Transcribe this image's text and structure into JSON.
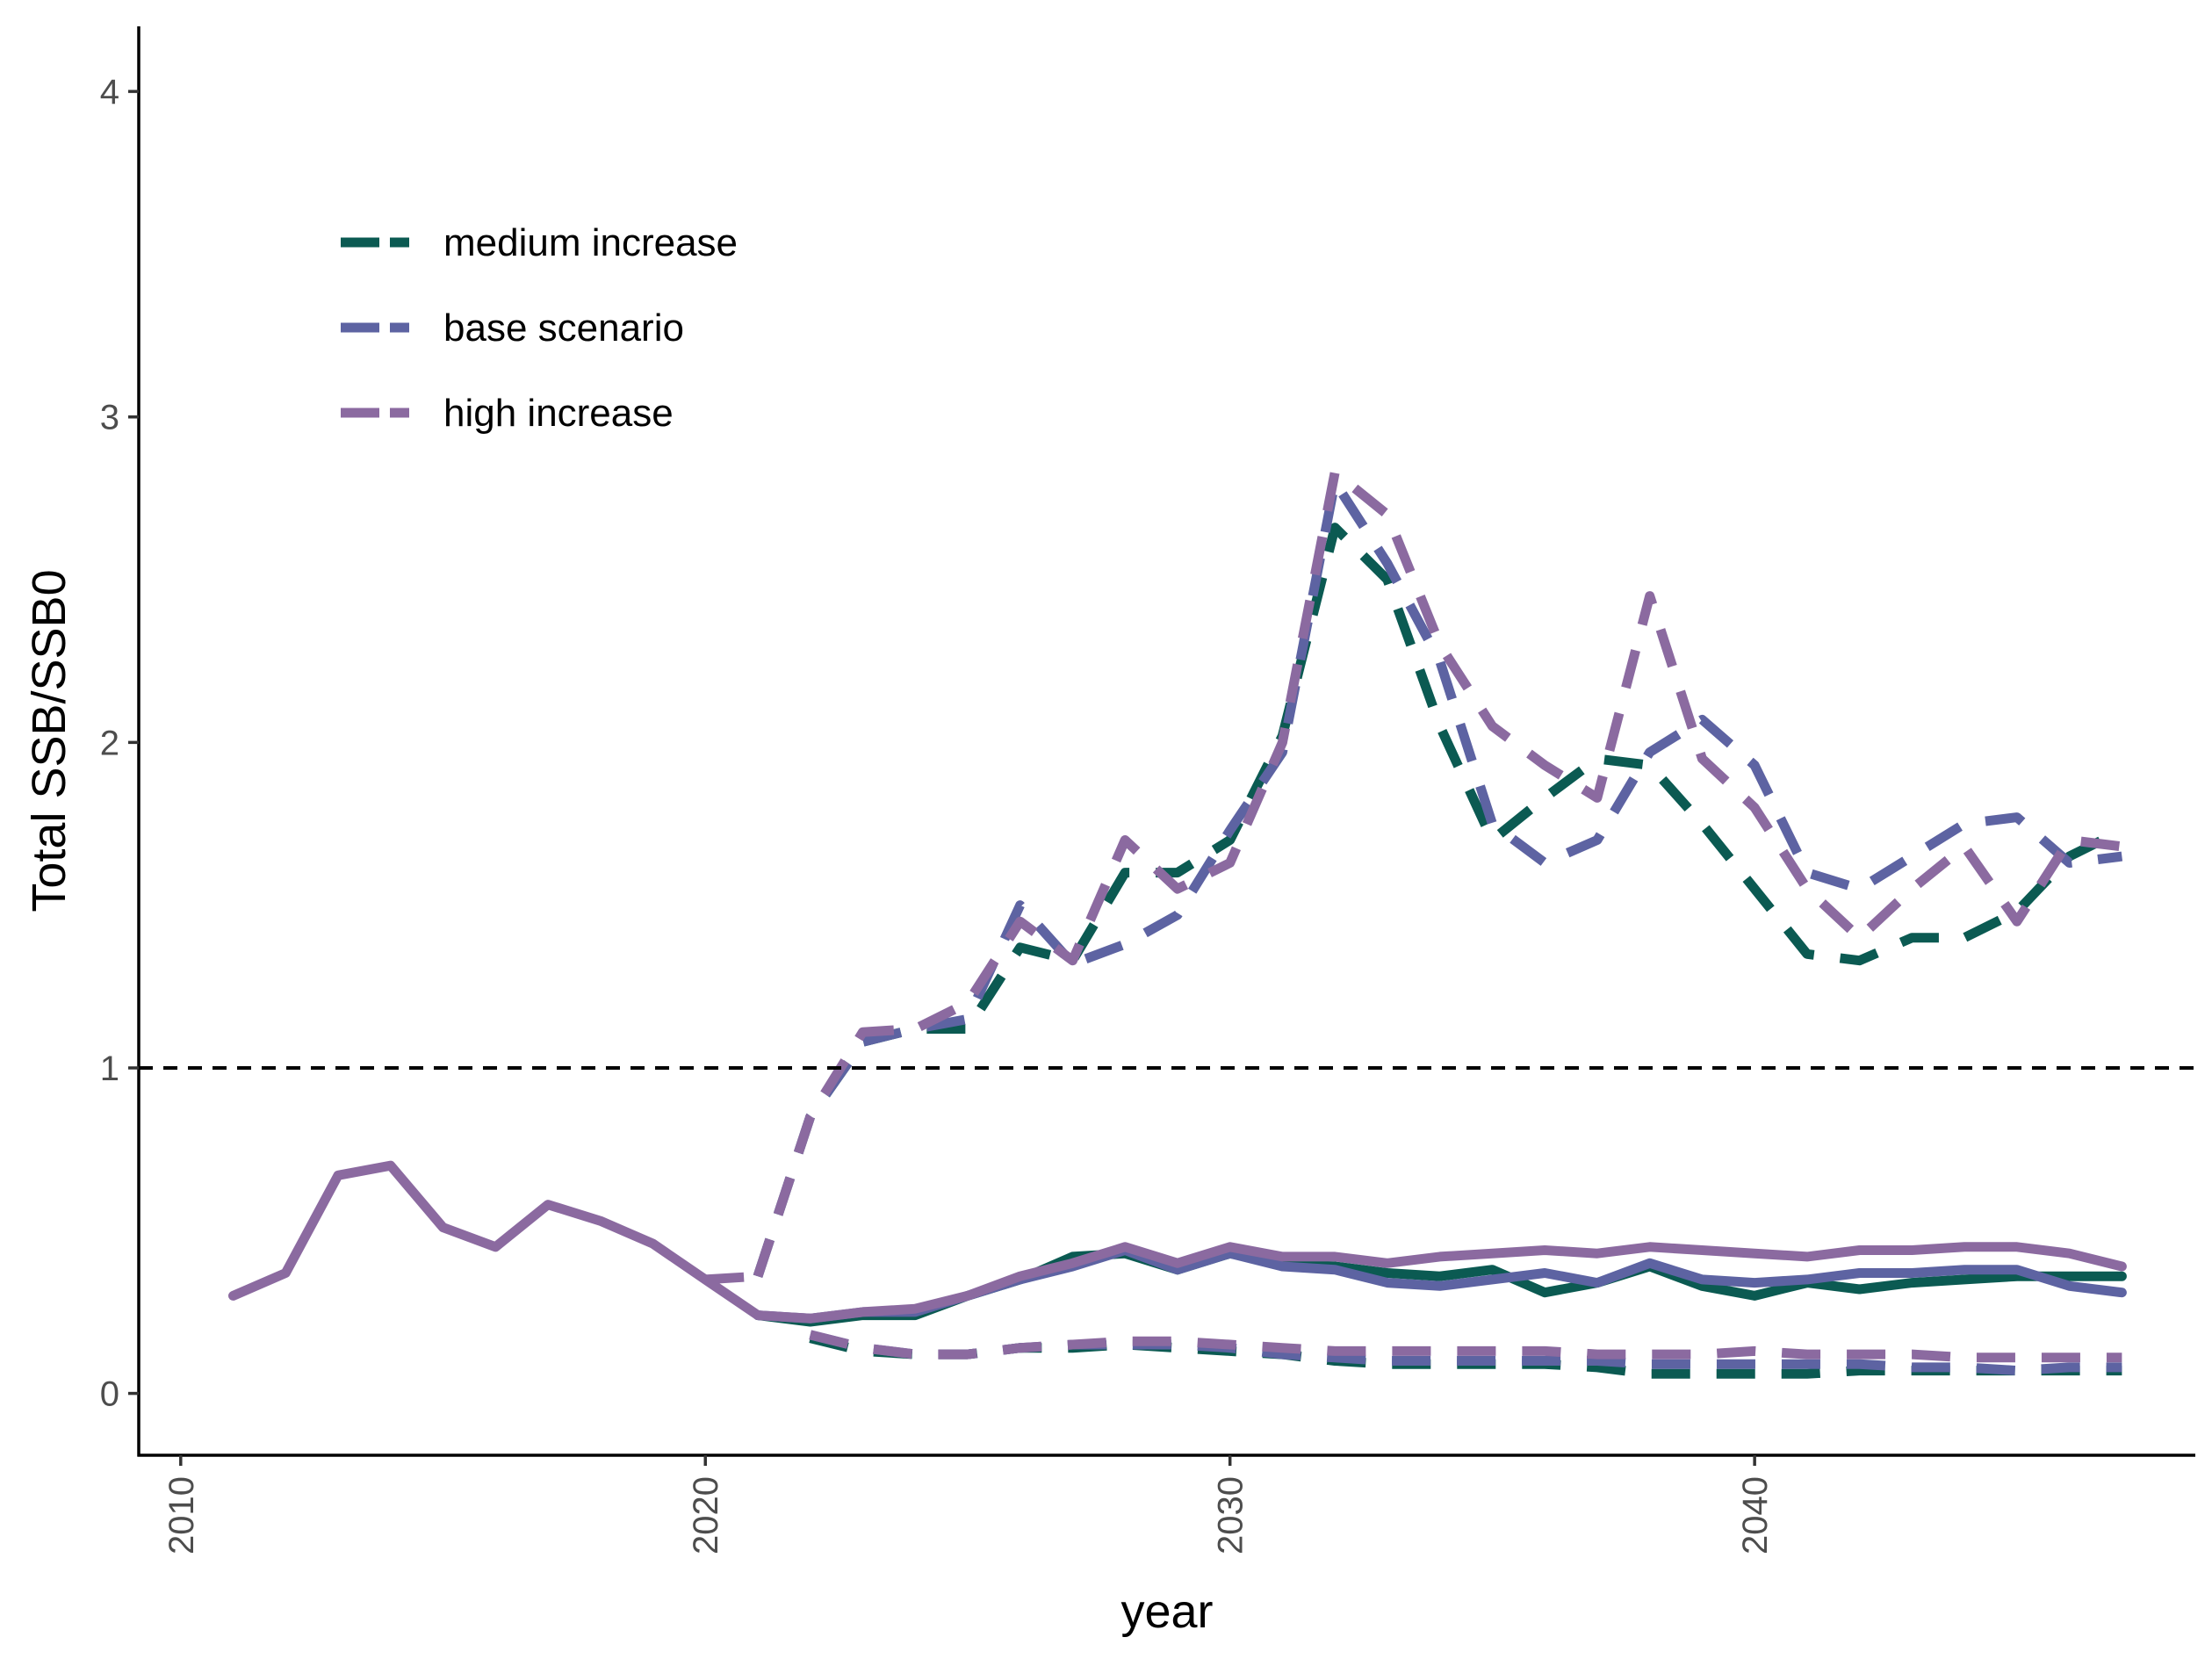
{
  "chart_data": {
    "type": "line",
    "xlabel": "year",
    "ylabel": "Total SSB/SSB0",
    "xlim": [
      2009.2,
      2048.4
    ],
    "ylim": [
      -0.19,
      4.2
    ],
    "x_ticks": [
      "2010",
      "2020",
      "2030",
      "2040"
    ],
    "y_ticks": [
      "0",
      "1",
      "2",
      "3",
      "4"
    ],
    "reference_line": {
      "y": 1,
      "style": "dashed",
      "color": "#000000"
    },
    "grid": false,
    "legend": {
      "position": "top-left",
      "entries": [
        {
          "label": "medium increase",
          "color": "#0b5a52"
        },
        {
          "label": "base scenario",
          "color": "#5d63a2"
        },
        {
          "label": "high increase",
          "color": "#8b6aa0"
        }
      ]
    },
    "series": [
      {
        "name": "medium increase",
        "style": "dashed",
        "color": "#0b5a52",
        "x": [
          2021,
          2022,
          2023,
          2024,
          2025,
          2026,
          2027,
          2028,
          2029,
          2030,
          2031,
          2032,
          2033,
          2034,
          2035,
          2036,
          2037,
          2038,
          2039,
          2040,
          2041,
          2042,
          2043,
          2044,
          2045,
          2046,
          2047
        ],
        "y": [
          0.36,
          0.85,
          1.08,
          1.12,
          1.12,
          1.37,
          1.33,
          1.6,
          1.6,
          1.7,
          2.02,
          2.66,
          2.5,
          2.05,
          1.7,
          1.83,
          1.95,
          1.93,
          1.75,
          1.55,
          1.35,
          1.33,
          1.4,
          1.4,
          1.48,
          1.65,
          1.73
        ]
      },
      {
        "name": "base scenario",
        "style": "dashed",
        "color": "#5d63a2",
        "x": [
          2021,
          2022,
          2023,
          2024,
          2025,
          2026,
          2027,
          2028,
          2029,
          2030,
          2031,
          2032,
          2033,
          2034,
          2035,
          2036,
          2037,
          2038,
          2039,
          2040,
          2041,
          2042,
          2043,
          2044,
          2045,
          2046,
          2047
        ],
        "y": [
          0.36,
          0.85,
          1.08,
          1.12,
          1.15,
          1.5,
          1.32,
          1.38,
          1.47,
          1.73,
          1.97,
          2.8,
          2.55,
          2.25,
          1.75,
          1.63,
          1.7,
          1.97,
          2.07,
          1.93,
          1.6,
          1.55,
          1.65,
          1.75,
          1.77,
          1.63,
          1.65
        ]
      },
      {
        "name": "high increase",
        "style": "dashed",
        "color": "#8b6aa0",
        "x": [
          2021,
          2022,
          2023,
          2024,
          2025,
          2026,
          2027,
          2028,
          2029,
          2030,
          2031,
          2032,
          2033,
          2034,
          2035,
          2036,
          2037,
          2038,
          2039,
          2040,
          2041,
          2042,
          2043,
          2044,
          2045,
          2046,
          2047
        ],
        "y": [
          0.36,
          0.85,
          1.11,
          1.12,
          1.2,
          1.45,
          1.33,
          1.7,
          1.55,
          1.63,
          2.0,
          2.83,
          2.7,
          2.3,
          2.05,
          1.93,
          1.83,
          2.45,
          1.95,
          1.8,
          1.55,
          1.4,
          1.55,
          1.68,
          1.45,
          1.7,
          1.68
        ]
      },
      {
        "name": "medium increase",
        "style": "dashed",
        "color": "#0b5a52",
        "x": [
          2022,
          2023,
          2024,
          2025,
          2026,
          2027,
          2028,
          2029,
          2030,
          2031,
          2032,
          2033,
          2034,
          2035,
          2036,
          2037,
          2038,
          2039,
          2040,
          2041,
          2042,
          2043,
          2044,
          2045,
          2046,
          2047
        ],
        "y": [
          0.17,
          0.13,
          0.12,
          0.12,
          0.14,
          0.14,
          0.15,
          0.14,
          0.13,
          0.12,
          0.1,
          0.09,
          0.09,
          0.09,
          0.09,
          0.08,
          0.06,
          0.06,
          0.06,
          0.06,
          0.07,
          0.07,
          0.07,
          0.07,
          0.07,
          0.07
        ]
      },
      {
        "name": "base scenario",
        "style": "dashed",
        "color": "#5d63a2",
        "x": [
          2022,
          2023,
          2024,
          2025,
          2026,
          2027,
          2028,
          2029,
          2030,
          2031,
          2032,
          2033,
          2034,
          2035,
          2036,
          2037,
          2038,
          2039,
          2040,
          2041,
          2042,
          2043,
          2044,
          2045,
          2046,
          2047
        ],
        "y": [
          0.18,
          0.14,
          0.12,
          0.12,
          0.14,
          0.15,
          0.15,
          0.15,
          0.14,
          0.12,
          0.11,
          0.1,
          0.1,
          0.1,
          0.1,
          0.1,
          0.09,
          0.09,
          0.09,
          0.09,
          0.09,
          0.08,
          0.08,
          0.07,
          0.08,
          0.08
        ]
      },
      {
        "name": "high increase",
        "style": "dashed",
        "color": "#8b6aa0",
        "x": [
          2022,
          2023,
          2024,
          2025,
          2026,
          2027,
          2028,
          2029,
          2030,
          2031,
          2032,
          2033,
          2034,
          2035,
          2036,
          2037,
          2038,
          2039,
          2040,
          2041,
          2042,
          2043,
          2044,
          2045,
          2046,
          2047
        ],
        "y": [
          0.18,
          0.14,
          0.12,
          0.12,
          0.14,
          0.15,
          0.16,
          0.16,
          0.15,
          0.14,
          0.13,
          0.13,
          0.13,
          0.13,
          0.13,
          0.12,
          0.12,
          0.12,
          0.13,
          0.12,
          0.12,
          0.12,
          0.11,
          0.11,
          0.11,
          0.11
        ]
      },
      {
        "name": "medium increase",
        "style": "solid",
        "color": "#0b5a52",
        "x": [
          2021,
          2022,
          2023,
          2024,
          2025,
          2026,
          2027,
          2028,
          2029,
          2030,
          2031,
          2032,
          2033,
          2034,
          2035,
          2036,
          2037,
          2038,
          2039,
          2040,
          2041,
          2042,
          2043,
          2044,
          2045,
          2046,
          2047
        ],
        "y": [
          0.24,
          0.22,
          0.24,
          0.24,
          0.3,
          0.35,
          0.42,
          0.43,
          0.38,
          0.43,
          0.4,
          0.39,
          0.37,
          0.36,
          0.38,
          0.31,
          0.34,
          0.39,
          0.33,
          0.3,
          0.34,
          0.32,
          0.34,
          0.35,
          0.36,
          0.36,
          0.36
        ]
      },
      {
        "name": "base scenario",
        "style": "solid",
        "color": "#5d63a2",
        "x": [
          2021,
          2022,
          2023,
          2024,
          2025,
          2026,
          2027,
          2028,
          2029,
          2030,
          2031,
          2032,
          2033,
          2034,
          2035,
          2036,
          2037,
          2038,
          2039,
          2040,
          2041,
          2042,
          2043,
          2044,
          2045,
          2046,
          2047
        ],
        "y": [
          0.24,
          0.23,
          0.25,
          0.25,
          0.3,
          0.35,
          0.39,
          0.44,
          0.38,
          0.43,
          0.39,
          0.38,
          0.34,
          0.33,
          0.35,
          0.37,
          0.34,
          0.4,
          0.35,
          0.34,
          0.35,
          0.37,
          0.37,
          0.38,
          0.38,
          0.33,
          0.31
        ]
      },
      {
        "name": "high increase",
        "style": "solid",
        "color": "#8b6aa0",
        "x": [
          2011,
          2012,
          2013,
          2014,
          2015,
          2016,
          2017,
          2018,
          2019,
          2020,
          2021,
          2022,
          2023,
          2024,
          2025,
          2026,
          2027,
          2028,
          2029,
          2030,
          2031,
          2032,
          2033,
          2034,
          2035,
          2036,
          2037,
          2038,
          2039,
          2040,
          2041,
          2042,
          2043,
          2044,
          2045,
          2046,
          2047
        ],
        "y": [
          0.3,
          0.37,
          0.67,
          0.7,
          0.51,
          0.45,
          0.58,
          0.53,
          0.46,
          0.35,
          0.24,
          0.23,
          0.25,
          0.26,
          0.3,
          0.36,
          0.4,
          0.45,
          0.4,
          0.45,
          0.42,
          0.42,
          0.4,
          0.42,
          0.43,
          0.44,
          0.43,
          0.45,
          0.44,
          0.43,
          0.42,
          0.44,
          0.44,
          0.45,
          0.45,
          0.43,
          0.39
        ]
      },
      {
        "name": "high increase",
        "style": "dashed",
        "color": "#8b6aa0",
        "x": [
          2020,
          2021
        ],
        "y": [
          0.35,
          0.36
        ]
      }
    ]
  }
}
